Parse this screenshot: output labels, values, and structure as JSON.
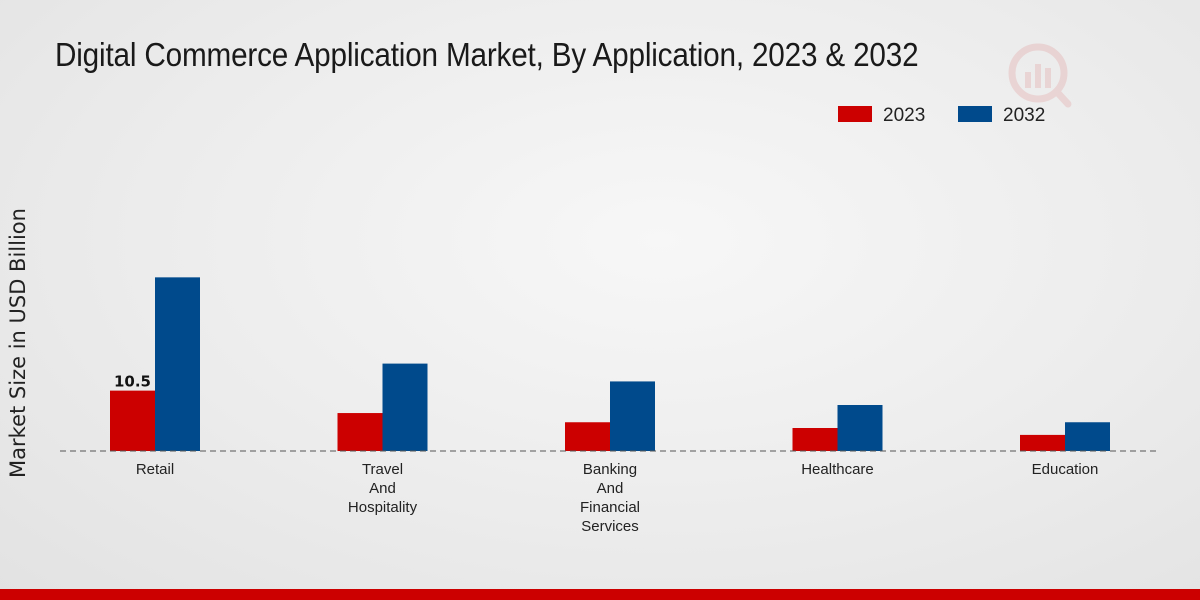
{
  "chart_data": {
    "type": "bar",
    "title": "Digital Commerce Application Market, By Application, 2023 & 2032",
    "xlabel": "",
    "ylabel": "Market Size in USD Billion",
    "ylim": [
      0,
      36
    ],
    "grid": false,
    "legend_position": "top-right",
    "categories": [
      [
        "Retail"
      ],
      [
        "Travel",
        "And",
        "Hospitality"
      ],
      [
        "Banking",
        "And",
        "Financial",
        "Services"
      ],
      [
        "Healthcare"
      ],
      [
        "Education"
      ]
    ],
    "series": [
      {
        "name": "2023",
        "color": "#cc0000",
        "values": [
          10.5,
          6.6,
          5.0,
          4.0,
          2.8
        ]
      },
      {
        "name": "2032",
        "color": "#004a8c",
        "values": [
          30.2,
          15.2,
          12.1,
          8.0,
          5.0
        ]
      }
    ],
    "data_labels": [
      {
        "series": 0,
        "index": 0,
        "text": "10.5"
      }
    ]
  }
}
